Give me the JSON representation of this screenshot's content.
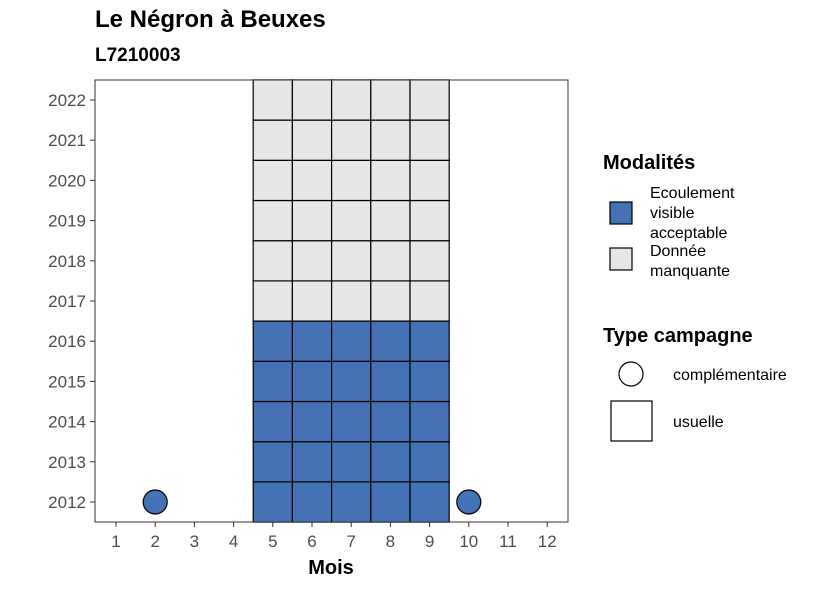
{
  "title": "Le Négron à Beuxes",
  "subtitle": "L7210003",
  "chart_data": {
    "type": "heatmap",
    "xlabel": "Mois",
    "ylabel": "",
    "x_ticks": [
      "1",
      "2",
      "3",
      "4",
      "5",
      "6",
      "7",
      "8",
      "9",
      "10",
      "11",
      "12"
    ],
    "y_ticks": [
      "2012",
      "2013",
      "2014",
      "2015",
      "2016",
      "2017",
      "2018",
      "2019",
      "2020",
      "2021",
      "2022"
    ],
    "colors": {
      "Ecoulement visible acceptable": "#4472b4",
      "Donnée manquante": "#e6e6e6"
    },
    "cells": [
      {
        "month": 5,
        "year": 2012,
        "modalite": "Ecoulement visible acceptable",
        "campagne": "usuelle"
      },
      {
        "month": 6,
        "year": 2012,
        "modalite": "Ecoulement visible acceptable",
        "campagne": "usuelle"
      },
      {
        "month": 7,
        "year": 2012,
        "modalite": "Ecoulement visible acceptable",
        "campagne": "usuelle"
      },
      {
        "month": 8,
        "year": 2012,
        "modalite": "Ecoulement visible acceptable",
        "campagne": "usuelle"
      },
      {
        "month": 9,
        "year": 2012,
        "modalite": "Ecoulement visible acceptable",
        "campagne": "usuelle"
      },
      {
        "month": 5,
        "year": 2013,
        "modalite": "Ecoulement visible acceptable",
        "campagne": "usuelle"
      },
      {
        "month": 6,
        "year": 2013,
        "modalite": "Ecoulement visible acceptable",
        "campagne": "usuelle"
      },
      {
        "month": 7,
        "year": 2013,
        "modalite": "Ecoulement visible acceptable",
        "campagne": "usuelle"
      },
      {
        "month": 8,
        "year": 2013,
        "modalite": "Ecoulement visible acceptable",
        "campagne": "usuelle"
      },
      {
        "month": 9,
        "year": 2013,
        "modalite": "Ecoulement visible acceptable",
        "campagne": "usuelle"
      },
      {
        "month": 5,
        "year": 2014,
        "modalite": "Ecoulement visible acceptable",
        "campagne": "usuelle"
      },
      {
        "month": 6,
        "year": 2014,
        "modalite": "Ecoulement visible acceptable",
        "campagne": "usuelle"
      },
      {
        "month": 7,
        "year": 2014,
        "modalite": "Ecoulement visible acceptable",
        "campagne": "usuelle"
      },
      {
        "month": 8,
        "year": 2014,
        "modalite": "Ecoulement visible acceptable",
        "campagne": "usuelle"
      },
      {
        "month": 9,
        "year": 2014,
        "modalite": "Ecoulement visible acceptable",
        "campagne": "usuelle"
      },
      {
        "month": 5,
        "year": 2015,
        "modalite": "Ecoulement visible acceptable",
        "campagne": "usuelle"
      },
      {
        "month": 6,
        "year": 2015,
        "modalite": "Ecoulement visible acceptable",
        "campagne": "usuelle"
      },
      {
        "month": 7,
        "year": 2015,
        "modalite": "Ecoulement visible acceptable",
        "campagne": "usuelle"
      },
      {
        "month": 8,
        "year": 2015,
        "modalite": "Ecoulement visible acceptable",
        "campagne": "usuelle"
      },
      {
        "month": 9,
        "year": 2015,
        "modalite": "Ecoulement visible acceptable",
        "campagne": "usuelle"
      },
      {
        "month": 5,
        "year": 2016,
        "modalite": "Ecoulement visible acceptable",
        "campagne": "usuelle"
      },
      {
        "month": 6,
        "year": 2016,
        "modalite": "Ecoulement visible acceptable",
        "campagne": "usuelle"
      },
      {
        "month": 7,
        "year": 2016,
        "modalite": "Ecoulement visible acceptable",
        "campagne": "usuelle"
      },
      {
        "month": 8,
        "year": 2016,
        "modalite": "Ecoulement visible acceptable",
        "campagne": "usuelle"
      },
      {
        "month": 9,
        "year": 2016,
        "modalite": "Ecoulement visible acceptable",
        "campagne": "usuelle"
      },
      {
        "month": 5,
        "year": 2017,
        "modalite": "Donnée manquante",
        "campagne": "usuelle"
      },
      {
        "month": 6,
        "year": 2017,
        "modalite": "Donnée manquante",
        "campagne": "usuelle"
      },
      {
        "month": 7,
        "year": 2017,
        "modalite": "Donnée manquante",
        "campagne": "usuelle"
      },
      {
        "month": 8,
        "year": 2017,
        "modalite": "Donnée manquante",
        "campagne": "usuelle"
      },
      {
        "month": 9,
        "year": 2017,
        "modalite": "Donnée manquante",
        "campagne": "usuelle"
      },
      {
        "month": 5,
        "year": 2018,
        "modalite": "Donnée manquante",
        "campagne": "usuelle"
      },
      {
        "month": 6,
        "year": 2018,
        "modalite": "Donnée manquante",
        "campagne": "usuelle"
      },
      {
        "month": 7,
        "year": 2018,
        "modalite": "Donnée manquante",
        "campagne": "usuelle"
      },
      {
        "month": 8,
        "year": 2018,
        "modalite": "Donnée manquante",
        "campagne": "usuelle"
      },
      {
        "month": 9,
        "year": 2018,
        "modalite": "Donnée manquante",
        "campagne": "usuelle"
      },
      {
        "month": 5,
        "year": 2019,
        "modalite": "Donnée manquante",
        "campagne": "usuelle"
      },
      {
        "month": 6,
        "year": 2019,
        "modalite": "Donnée manquante",
        "campagne": "usuelle"
      },
      {
        "month": 7,
        "year": 2019,
        "modalite": "Donnée manquante",
        "campagne": "usuelle"
      },
      {
        "month": 8,
        "year": 2019,
        "modalite": "Donnée manquante",
        "campagne": "usuelle"
      },
      {
        "month": 9,
        "year": 2019,
        "modalite": "Donnée manquante",
        "campagne": "usuelle"
      },
      {
        "month": 5,
        "year": 2020,
        "modalite": "Donnée manquante",
        "campagne": "usuelle"
      },
      {
        "month": 6,
        "year": 2020,
        "modalite": "Donnée manquante",
        "campagne": "usuelle"
      },
      {
        "month": 7,
        "year": 2020,
        "modalite": "Donnée manquante",
        "campagne": "usuelle"
      },
      {
        "month": 8,
        "year": 2020,
        "modalite": "Donnée manquante",
        "campagne": "usuelle"
      },
      {
        "month": 9,
        "year": 2020,
        "modalite": "Donnée manquante",
        "campagne": "usuelle"
      },
      {
        "month": 5,
        "year": 2021,
        "modalite": "Donnée manquante",
        "campagne": "usuelle"
      },
      {
        "month": 6,
        "year": 2021,
        "modalite": "Donnée manquante",
        "campagne": "usuelle"
      },
      {
        "month": 7,
        "year": 2021,
        "modalite": "Donnée manquante",
        "campagne": "usuelle"
      },
      {
        "month": 8,
        "year": 2021,
        "modalite": "Donnée manquante",
        "campagne": "usuelle"
      },
      {
        "month": 9,
        "year": 2021,
        "modalite": "Donnée manquante",
        "campagne": "usuelle"
      },
      {
        "month": 5,
        "year": 2022,
        "modalite": "Donnée manquante",
        "campagne": "usuelle"
      },
      {
        "month": 6,
        "year": 2022,
        "modalite": "Donnée manquante",
        "campagne": "usuelle"
      },
      {
        "month": 7,
        "year": 2022,
        "modalite": "Donnée manquante",
        "campagne": "usuelle"
      },
      {
        "month": 8,
        "year": 2022,
        "modalite": "Donnée manquante",
        "campagne": "usuelle"
      },
      {
        "month": 9,
        "year": 2022,
        "modalite": "Donnée manquante",
        "campagne": "usuelle"
      },
      {
        "month": 2,
        "year": 2012,
        "modalite": "Ecoulement visible acceptable",
        "campagne": "complémentaire"
      },
      {
        "month": 10,
        "year": 2012,
        "modalite": "Ecoulement visible acceptable",
        "campagne": "complémentaire"
      }
    ],
    "legend_modalites": {
      "title": "Modalités",
      "items": [
        {
          "lines": [
            "Ecoulement",
            "visible",
            "acceptable"
          ],
          "color": "#4472b4"
        },
        {
          "lines": [
            "Donnée",
            "manquante"
          ],
          "color": "#e6e6e6"
        }
      ]
    },
    "legend_campagne": {
      "title": "Type campagne",
      "items": [
        {
          "label": "complémentaire",
          "shape": "circle"
        },
        {
          "label": "usuelle",
          "shape": "square"
        }
      ]
    },
    "legend_placement": "right",
    "grid": false
  }
}
